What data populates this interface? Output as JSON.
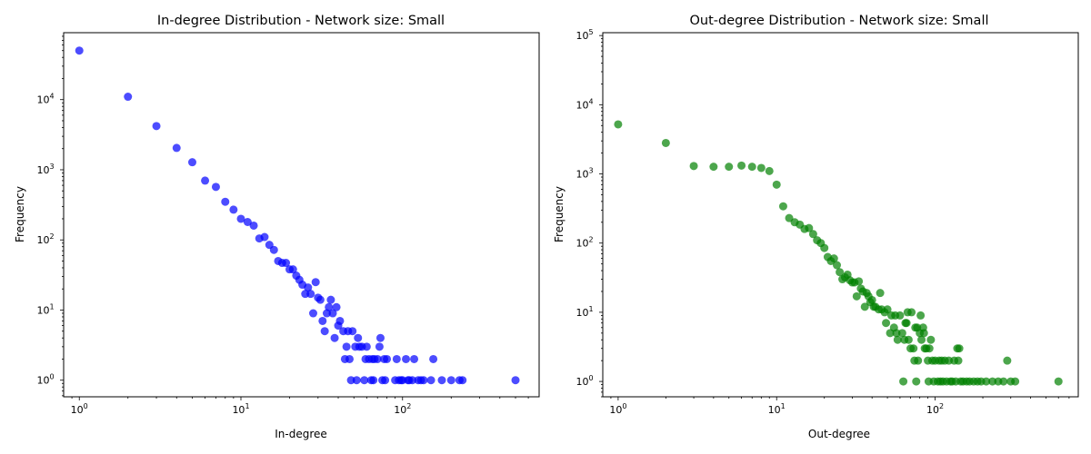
{
  "chart_data": [
    {
      "type": "scatter",
      "title": "In-degree Distribution - Network size: Small",
      "xlabel": "In-degree",
      "ylabel": "Frequency",
      "xscale": "log",
      "yscale": "log",
      "xlim": [
        0.8,
        700
      ],
      "ylim": [
        0.58,
        90000
      ],
      "xticks": [
        {
          "base": "10",
          "exp": "0",
          "value": 1
        },
        {
          "base": "10",
          "exp": "1",
          "value": 10
        },
        {
          "base": "10",
          "exp": "2",
          "value": 100
        }
      ],
      "yticks": [
        {
          "base": "10",
          "exp": "0",
          "value": 1
        },
        {
          "base": "10",
          "exp": "1",
          "value": 10
        },
        {
          "base": "10",
          "exp": "2",
          "value": 100
        },
        {
          "base": "10",
          "exp": "3",
          "value": 1000
        },
        {
          "base": "10",
          "exp": "4",
          "value": 10000
        }
      ],
      "grid": false,
      "series": [
        {
          "color": "#0000ff",
          "points": [
            [
              1,
              50000
            ],
            [
              2,
              11000
            ],
            [
              3,
              4200
            ],
            [
              4,
              2050
            ],
            [
              5,
              1280
            ],
            [
              6,
              700
            ],
            [
              7,
              570
            ],
            [
              8,
              350
            ],
            [
              9,
              270
            ],
            [
              10,
              200
            ],
            [
              11,
              180
            ],
            [
              12,
              160
            ],
            [
              13,
              105
            ],
            [
              14,
              110
            ],
            [
              15,
              85
            ],
            [
              16,
              72
            ],
            [
              17,
              50
            ],
            [
              18,
              47
            ],
            [
              19,
              47
            ],
            [
              20,
              38
            ],
            [
              21,
              38
            ],
            [
              22,
              31
            ],
            [
              23,
              27
            ],
            [
              24,
              23
            ],
            [
              25,
              17
            ],
            [
              26,
              21
            ],
            [
              27,
              17
            ],
            [
              28,
              9
            ],
            [
              29,
              25
            ],
            [
              30,
              15
            ],
            [
              31,
              14
            ],
            [
              32,
              7
            ],
            [
              33,
              5
            ],
            [
              34,
              9
            ],
            [
              35,
              11
            ],
            [
              36,
              14
            ],
            [
              37,
              9
            ],
            [
              38,
              4
            ],
            [
              39,
              11
            ],
            [
              40,
              6
            ],
            [
              41,
              7
            ],
            [
              43,
              5
            ],
            [
              44,
              2
            ],
            [
              45,
              3
            ],
            [
              46,
              5
            ],
            [
              47,
              2
            ],
            [
              48,
              1
            ],
            [
              49,
              5
            ],
            [
              51,
              3
            ],
            [
              52,
              1
            ],
            [
              53,
              4
            ],
            [
              54,
              3
            ],
            [
              56,
              3
            ],
            [
              58,
              1
            ],
            [
              59,
              2
            ],
            [
              60,
              3
            ],
            [
              62,
              2
            ],
            [
              64,
              1
            ],
            [
              65,
              2
            ],
            [
              66,
              1
            ],
            [
              67,
              2
            ],
            [
              70,
              2
            ],
            [
              72,
              3
            ],
            [
              73,
              4
            ],
            [
              75,
              1
            ],
            [
              77,
              2
            ],
            [
              78,
              1
            ],
            [
              80,
              2
            ],
            [
              90,
              1
            ],
            [
              92,
              2
            ],
            [
              95,
              1
            ],
            [
              98,
              1
            ],
            [
              100,
              1
            ],
            [
              105,
              2
            ],
            [
              108,
              1
            ],
            [
              110,
              1
            ],
            [
              115,
              1
            ],
            [
              118,
              2
            ],
            [
              125,
              1
            ],
            [
              130,
              1
            ],
            [
              135,
              1
            ],
            [
              150,
              1
            ],
            [
              155,
              2
            ],
            [
              175,
              1
            ],
            [
              200,
              1
            ],
            [
              225,
              1
            ],
            [
              235,
              1
            ],
            [
              500,
              1
            ]
          ]
        }
      ]
    },
    {
      "type": "scatter",
      "title": "Out-degree Distribution - Network size: Small",
      "xlabel": "Out-degree",
      "ylabel": "Frequency",
      "xscale": "log",
      "yscale": "log",
      "xlim": [
        0.8,
        800
      ],
      "ylim": [
        0.6,
        110000
      ],
      "xticks": [
        {
          "base": "10",
          "exp": "0",
          "value": 1
        },
        {
          "base": "10",
          "exp": "1",
          "value": 10
        },
        {
          "base": "10",
          "exp": "2",
          "value": 100
        }
      ],
      "yticks": [
        {
          "base": "10",
          "exp": "0",
          "value": 1
        },
        {
          "base": "10",
          "exp": "1",
          "value": 10
        },
        {
          "base": "10",
          "exp": "2",
          "value": 100
        },
        {
          "base": "10",
          "exp": "3",
          "value": 1000
        },
        {
          "base": "10",
          "exp": "4",
          "value": 10000
        },
        {
          "base": "10",
          "exp": "5",
          "value": 100000
        }
      ],
      "grid": false,
      "series": [
        {
          "color": "#008000",
          "points": [
            [
              1,
              5200
            ],
            [
              2,
              2800
            ],
            [
              3,
              1300
            ],
            [
              4,
              1270
            ],
            [
              5,
              1270
            ],
            [
              6,
              1320
            ],
            [
              7,
              1270
            ],
            [
              8,
              1220
            ],
            [
              9,
              1100
            ],
            [
              10,
              700
            ],
            [
              11,
              340
            ],
            [
              12,
              230
            ],
            [
              13,
              200
            ],
            [
              14,
              185
            ],
            [
              15,
              160
            ],
            [
              16,
              165
            ],
            [
              17,
              135
            ],
            [
              18,
              110
            ],
            [
              19,
              100
            ],
            [
              20,
              85
            ],
            [
              21,
              63
            ],
            [
              22,
              55
            ],
            [
              23,
              60
            ],
            [
              24,
              48
            ],
            [
              25,
              38
            ],
            [
              26,
              30
            ],
            [
              27,
              32
            ],
            [
              28,
              35
            ],
            [
              29,
              29
            ],
            [
              30,
              27
            ],
            [
              31,
              27
            ],
            [
              32,
              17
            ],
            [
              33,
              28
            ],
            [
              34,
              22
            ],
            [
              35,
              20
            ],
            [
              36,
              12
            ],
            [
              37,
              19
            ],
            [
              38,
              17
            ],
            [
              39,
              14
            ],
            [
              40,
              15
            ],
            [
              41,
              12
            ],
            [
              42,
              12
            ],
            [
              44,
              11
            ],
            [
              45,
              19
            ],
            [
              46,
              11
            ],
            [
              48,
              10
            ],
            [
              49,
              7
            ],
            [
              50,
              11
            ],
            [
              52,
              5
            ],
            [
              53,
              9
            ],
            [
              55,
              6
            ],
            [
              56,
              9
            ],
            [
              57,
              5
            ],
            [
              58,
              4
            ],
            [
              60,
              9
            ],
            [
              62,
              5
            ],
            [
              63,
              1
            ],
            [
              64,
              4
            ],
            [
              65,
              7
            ],
            [
              66,
              7
            ],
            [
              67,
              10
            ],
            [
              68,
              4
            ],
            [
              70,
              3
            ],
            [
              71,
              10
            ],
            [
              73,
              3
            ],
            [
              74,
              2
            ],
            [
              75,
              6
            ],
            [
              76,
              1
            ],
            [
              77,
              6
            ],
            [
              78,
              2
            ],
            [
              80,
              5
            ],
            [
              81,
              9
            ],
            [
              82,
              4
            ],
            [
              84,
              6
            ],
            [
              85,
              5
            ],
            [
              86,
              3
            ],
            [
              88,
              3
            ],
            [
              90,
              2
            ],
            [
              91,
              1
            ],
            [
              92,
              3
            ],
            [
              94,
              4
            ],
            [
              96,
              2
            ],
            [
              98,
              1
            ],
            [
              100,
              2
            ],
            [
              104,
              1
            ],
            [
              106,
              2
            ],
            [
              108,
              1
            ],
            [
              110,
              2
            ],
            [
              112,
              1
            ],
            [
              115,
              2
            ],
            [
              118,
              1
            ],
            [
              122,
              2
            ],
            [
              125,
              1
            ],
            [
              128,
              1
            ],
            [
              132,
              2
            ],
            [
              135,
              1
            ],
            [
              138,
              3
            ],
            [
              140,
              2
            ],
            [
              142,
              3
            ],
            [
              145,
              1
            ],
            [
              150,
              1
            ],
            [
              158,
              1
            ],
            [
              165,
              1
            ],
            [
              175,
              1
            ],
            [
              185,
              1
            ],
            [
              195,
              1
            ],
            [
              210,
              1
            ],
            [
              230,
              1
            ],
            [
              250,
              1
            ],
            [
              270,
              1
            ],
            [
              285,
              2
            ],
            [
              300,
              1
            ],
            [
              320,
              1
            ],
            [
              600,
              1
            ]
          ]
        }
      ]
    }
  ]
}
